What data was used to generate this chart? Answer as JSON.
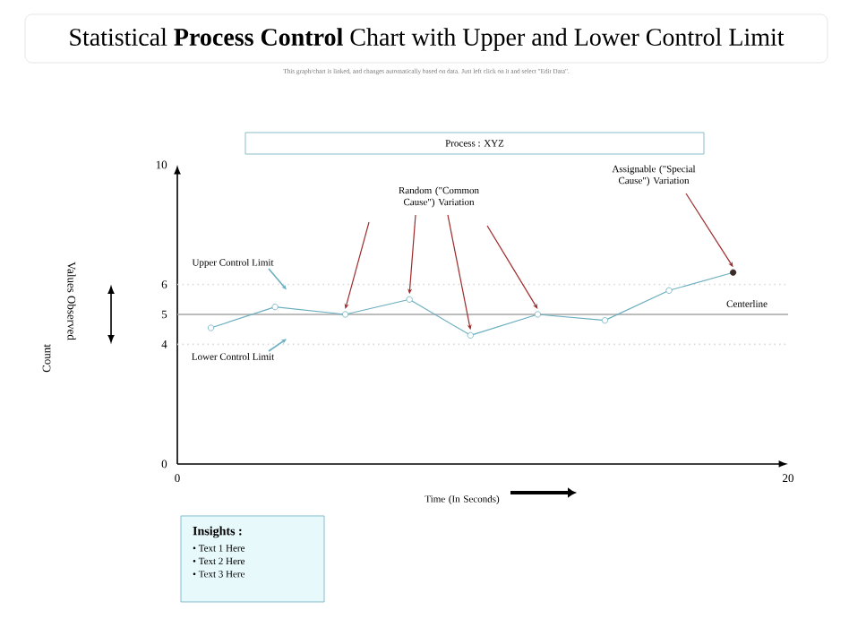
{
  "chart_data": {
    "type": "line",
    "title": "Statistical **Process Control** Chart with Upper and Lower Control Limit",
    "subtitle": "This graph/chart is linked, and changes automatically based on data. Just left click on it and select \"Edit Data\".",
    "xlabel": "Time (In Seconds)",
    "x": [
      1.1,
      3.2,
      5.5,
      7.6,
      9.6,
      11.8,
      14.0,
      16.1,
      18.2
    ],
    "series": [
      {
        "color": "#6aaebf",
        "values": [
          4.55,
          5.25,
          5.0,
          5.5,
          4.3,
          5.0,
          4.8,
          5.8,
          6.4
        ],
        "colors": [
          "#6aaebf",
          "#6aaebf",
          "#6aaebf",
          "#6aaebf",
          "#6aaebf",
          "#6aaebf",
          "#6aaebf",
          "#6aaebf",
          "#3a2a2a"
        ]
      }
    ],
    "marker": "circle",
    "xlim": [
      0,
      20
    ],
    "ylim": [
      0,
      10
    ],
    "xticks": [
      0,
      20
    ],
    "yticks": [
      0,
      4,
      5,
      6,
      10
    ],
    "ref_lines": [
      {
        "axis": "y",
        "value": 5,
        "label": "Centerline",
        "color": "#a6a6a6",
        "line_style": "solid"
      },
      {
        "axis": "y",
        "value": 6,
        "label": "Upper Control Limit",
        "color": "#d9d9d9",
        "line_style": "dotted"
      },
      {
        "axis": "y",
        "value": 4,
        "label": "Lower Control Limit",
        "color": "#d9d9d9",
        "line_style": "dotted"
      }
    ],
    "annotations": [
      "Process : XYZ",
      {
        "text": "Random (\"Common Cause\") Variation",
        "x": 9.6,
        "y": 4.3
      },
      {
        "text": "Assignable (\"Special Cause\") Variation",
        "x": 18.2,
        "y": 6.4
      },
      "Values Observed",
      "Count",
      "Insights :",
      "•   Text 1 Here",
      "•   Text 2 Here",
      "•   Text 3 Here"
    ]
  }
}
